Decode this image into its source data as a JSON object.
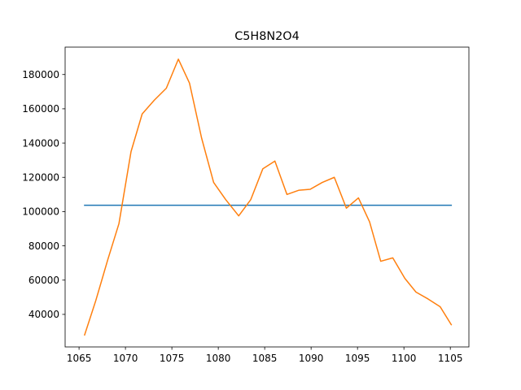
{
  "chart_data": {
    "type": "line",
    "title": "C5H8N2O4",
    "xlabel": "",
    "ylabel": "",
    "xlim": [
      1063.5,
      1107.0
    ],
    "ylim": [
      21000,
      196000
    ],
    "x_ticks": [
      1065,
      1070,
      1075,
      1080,
      1085,
      1090,
      1095,
      1100,
      1105
    ],
    "x_tick_labels": [
      "1065",
      "1070",
      "1075",
      "1080",
      "1085",
      "1090",
      "1095",
      "1100",
      "1105"
    ],
    "y_ticks": [
      40000,
      60000,
      80000,
      100000,
      120000,
      140000,
      160000,
      180000
    ],
    "y_tick_labels": [
      "40000",
      "60000",
      "80000",
      "100000",
      "120000",
      "140000",
      "160000",
      "180000"
    ],
    "grid": false,
    "legend": "none",
    "series": [
      {
        "color": "#1f77b4",
        "x": [
          1065.6,
          1105.1
        ],
        "y": [
          103700,
          103700
        ]
      },
      {
        "color": "#ff7f0e",
        "x": [
          1065.6,
          1066.8,
          1068.1,
          1069.3,
          1070.6,
          1071.8,
          1073.1,
          1074.4,
          1075.7,
          1076.9,
          1078.2,
          1079.5,
          1080.8,
          1082.2,
          1083.5,
          1084.8,
          1086.1,
          1087.4,
          1088.7,
          1089.9,
          1091.2,
          1092.5,
          1093.8,
          1095.1,
          1096.3,
          1097.5,
          1098.8,
          1100.1,
          1101.3,
          1102.6,
          1103.9,
          1105.1
        ],
        "y": [
          28000,
          48000,
          72000,
          93000,
          135000,
          157000,
          165000,
          172000,
          189000,
          175000,
          143000,
          117000,
          107000,
          97500,
          107000,
          125000,
          129500,
          110000,
          112500,
          113000,
          117000,
          120000,
          102000,
          108000,
          94000,
          71000,
          73000,
          61000,
          53000,
          49000,
          44500,
          34000
        ]
      }
    ]
  }
}
